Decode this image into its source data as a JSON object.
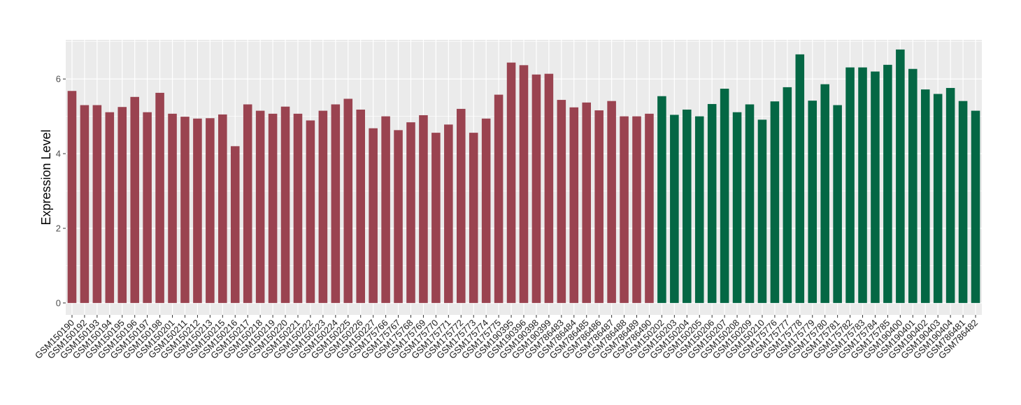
{
  "chart_data": {
    "type": "bar",
    "ylabel": "Expression Level",
    "xlabel": "",
    "ylim": [
      -0.32,
      7.05
    ],
    "yticks": [
      0,
      2,
      4,
      6
    ],
    "grid": true,
    "colors": {
      "group1": "#9a4350",
      "group2": "#046744",
      "panel": "#ebebeb",
      "grid": "#ffffff"
    },
    "categories": [
      "GSM150190",
      "GSM150192",
      "GSM150193",
      "GSM150194",
      "GSM150195",
      "GSM150196",
      "GSM150197",
      "GSM150198",
      "GSM150201",
      "GSM150211",
      "GSM150212",
      "GSM150213",
      "GSM150215",
      "GSM150216",
      "GSM150217",
      "GSM150218",
      "GSM150219",
      "GSM150220",
      "GSM150221",
      "GSM150222",
      "GSM150223",
      "GSM150224",
      "GSM150225",
      "GSM150226",
      "GSM150227",
      "GSM175766",
      "GSM175767",
      "GSM175768",
      "GSM175769",
      "GSM175770",
      "GSM175771",
      "GSM175772",
      "GSM175773",
      "GSM175774",
      "GSM175775",
      "GSM190395",
      "GSM190396",
      "GSM190398",
      "GSM190399",
      "GSM786483",
      "GSM786484",
      "GSM786485",
      "GSM786486",
      "GSM786487",
      "GSM786488",
      "GSM786489",
      "GSM786490",
      "GSM150202",
      "GSM150203",
      "GSM150204",
      "GSM150205",
      "GSM150206",
      "GSM150207",
      "GSM150208",
      "GSM150209",
      "GSM150210",
      "GSM175776",
      "GSM175777",
      "GSM175778",
      "GSM175779",
      "GSM175780",
      "GSM175781",
      "GSM175782",
      "GSM175783",
      "GSM175784",
      "GSM175785",
      "GSM190400",
      "GSM190401",
      "GSM190402",
      "GSM190403",
      "GSM190404",
      "GSM786481",
      "GSM786482"
    ],
    "values": [
      5.68,
      5.3,
      5.3,
      5.11,
      5.25,
      5.52,
      5.11,
      5.63,
      5.07,
      4.99,
      4.94,
      4.95,
      5.05,
      4.2,
      5.32,
      5.15,
      5.07,
      5.26,
      5.07,
      4.89,
      5.15,
      5.32,
      5.47,
      5.18,
      4.68,
      5.0,
      4.63,
      4.84,
      5.03,
      4.56,
      4.78,
      5.2,
      4.56,
      4.94,
      5.58,
      6.44,
      6.37,
      6.12,
      6.14,
      5.44,
      5.24,
      5.37,
      5.16,
      5.41,
      5.0,
      5.0,
      5.07,
      5.54,
      5.04,
      5.18,
      5.0,
      5.33,
      5.74,
      5.11,
      5.32,
      4.91,
      5.4,
      5.78,
      6.66,
      5.42,
      5.86,
      5.3,
      6.31,
      6.31,
      6.2,
      6.38,
      6.79,
      6.27,
      5.72,
      5.6,
      5.76,
      5.41,
      5.15
    ],
    "groups": [
      1,
      1,
      1,
      1,
      1,
      1,
      1,
      1,
      1,
      1,
      1,
      1,
      1,
      1,
      1,
      1,
      1,
      1,
      1,
      1,
      1,
      1,
      1,
      1,
      1,
      1,
      1,
      1,
      1,
      1,
      1,
      1,
      1,
      1,
      1,
      1,
      1,
      1,
      1,
      1,
      1,
      1,
      1,
      1,
      1,
      1,
      1,
      2,
      2,
      2,
      2,
      2,
      2,
      2,
      2,
      2,
      2,
      2,
      2,
      2,
      2,
      2,
      2,
      2,
      2,
      2,
      2,
      2,
      2,
      2,
      2,
      2,
      2
    ]
  }
}
